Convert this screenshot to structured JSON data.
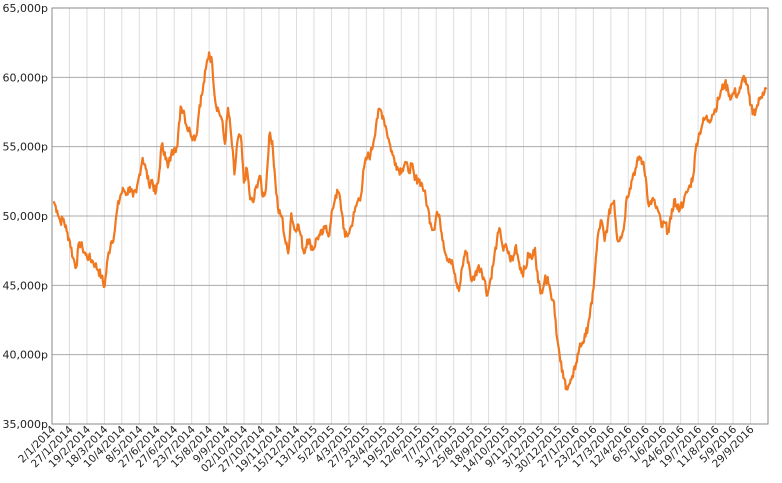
{
  "chart_data": {
    "type": "line",
    "title": "",
    "xlabel": "",
    "ylabel": "",
    "y_unit_suffix": "p",
    "ylim": [
      35000,
      65000
    ],
    "y_ticks": [
      {
        "value": 35000,
        "label": "35,000p"
      },
      {
        "value": 40000,
        "label": "40,000p"
      },
      {
        "value": 45000,
        "label": "45,000p"
      },
      {
        "value": 50000,
        "label": "50,000p"
      },
      {
        "value": 55000,
        "label": "55,000p"
      },
      {
        "value": 60000,
        "label": "60,000p"
      },
      {
        "value": 65000,
        "label": "65,000p"
      }
    ],
    "x_ticks": [
      "2/1/2014",
      "27/1/2014",
      "19/2/2014",
      "18/3/2014",
      "10/4/2014",
      "8/5/2014",
      "27/6/2014",
      "27/6/2014",
      "23/7/2014",
      "15/8/2014",
      "9/9/2014",
      "02/10/2014",
      "27/10/2014",
      "19/11/2014",
      "15/12/2014",
      "13/1/2015",
      "5/2/2015",
      "4/3/2015",
      "27/3/2015",
      "23/4/2015",
      "19/5/2015",
      "12/6/2015",
      "7/7/2015",
      "31/7/2015",
      "25/8/2015",
      "18/9/2015",
      "14/10/2015",
      "9/11/2015",
      "3/12/2015",
      "30/12/2015",
      "27/1/2016",
      "23/2/2016",
      "17/3/2016",
      "12/4/2016",
      "6/5/2016",
      "1/6/2016",
      "24/6/2016",
      "19/7/2016",
      "11/8/2016",
      "5/9/2016",
      "29/9/2016"
    ],
    "grid": {
      "horizontal": true,
      "vertical": true
    },
    "colors": {
      "line": "#f07820",
      "grid_h": "#aaaaaa",
      "grid_v": "#dddddd",
      "frame": "#888888"
    },
    "series": [
      {
        "values": [
          51000,
          50400,
          49600,
          49800,
          48900,
          48200,
          47000,
          46300,
          48100,
          47700,
          47200,
          47000,
          46800,
          46500,
          46100,
          45600,
          44900,
          47000,
          48100,
          48600,
          50500,
          51500,
          51900,
          51600,
          52100,
          51400,
          51700,
          53000,
          54200,
          53400,
          52300,
          52600,
          51600,
          52500,
          55100,
          54600,
          53500,
          54400,
          54900,
          55000,
          57900,
          57600,
          56400,
          56100,
          55700,
          55800,
          58000,
          59000,
          60600,
          61800,
          61000,
          58200,
          57600,
          57000,
          55200,
          57800,
          55800,
          53000,
          55400,
          55800,
          52400,
          53400,
          51200,
          51000,
          52200,
          52900,
          51400,
          52000,
          55800,
          55400,
          52300,
          50200,
          50000,
          48300,
          47300,
          50200,
          49000,
          49400,
          48600,
          47300,
          48300,
          48000,
          47600,
          48400,
          48600,
          48800,
          49300,
          48600,
          50500,
          51500,
          51700,
          50200,
          48500,
          48700,
          49300,
          50300,
          51100,
          51500,
          53500,
          54300,
          54400,
          55400,
          57000,
          57700,
          57200,
          56300,
          55300,
          54400,
          53800,
          53300,
          53400,
          53900,
          53200,
          53700,
          52600,
          52700,
          52400,
          51800,
          50700,
          49500,
          49000,
          50300,
          49600,
          48200,
          47100,
          46900,
          46500,
          45200,
          44600,
          46300,
          47500,
          46700,
          45300,
          45700,
          46300,
          46200,
          45400,
          44300,
          45500,
          46800,
          48300,
          49000,
          47500,
          47800,
          47000,
          46800,
          47900,
          46600,
          45900,
          46200,
          47300,
          46900,
          47700,
          45200,
          44600,
          45300,
          45600,
          44400,
          43800,
          41200,
          39500,
          38300,
          37700,
          37900,
          38400,
          39400,
          40500,
          40900,
          41300,
          42500,
          43700,
          46200,
          48800,
          49700,
          48200,
          49500,
          50800,
          51100,
          48300,
          48500,
          49000,
          51400,
          52000,
          53000,
          53500,
          54300,
          53900,
          52800,
          50700,
          51200,
          50800,
          50300,
          49200,
          49500,
          48900,
          49800,
          51200,
          50500,
          50700,
          51000,
          51700,
          52200,
          52900,
          55200,
          56000,
          56700,
          57100,
          56900,
          57300,
          57700,
          58400,
          59100,
          59600,
          59100,
          58500,
          59000,
          58700,
          59200,
          60100,
          59500,
          58000,
          57400,
          57800,
          58400,
          58900,
          59200
        ]
      }
    ]
  }
}
